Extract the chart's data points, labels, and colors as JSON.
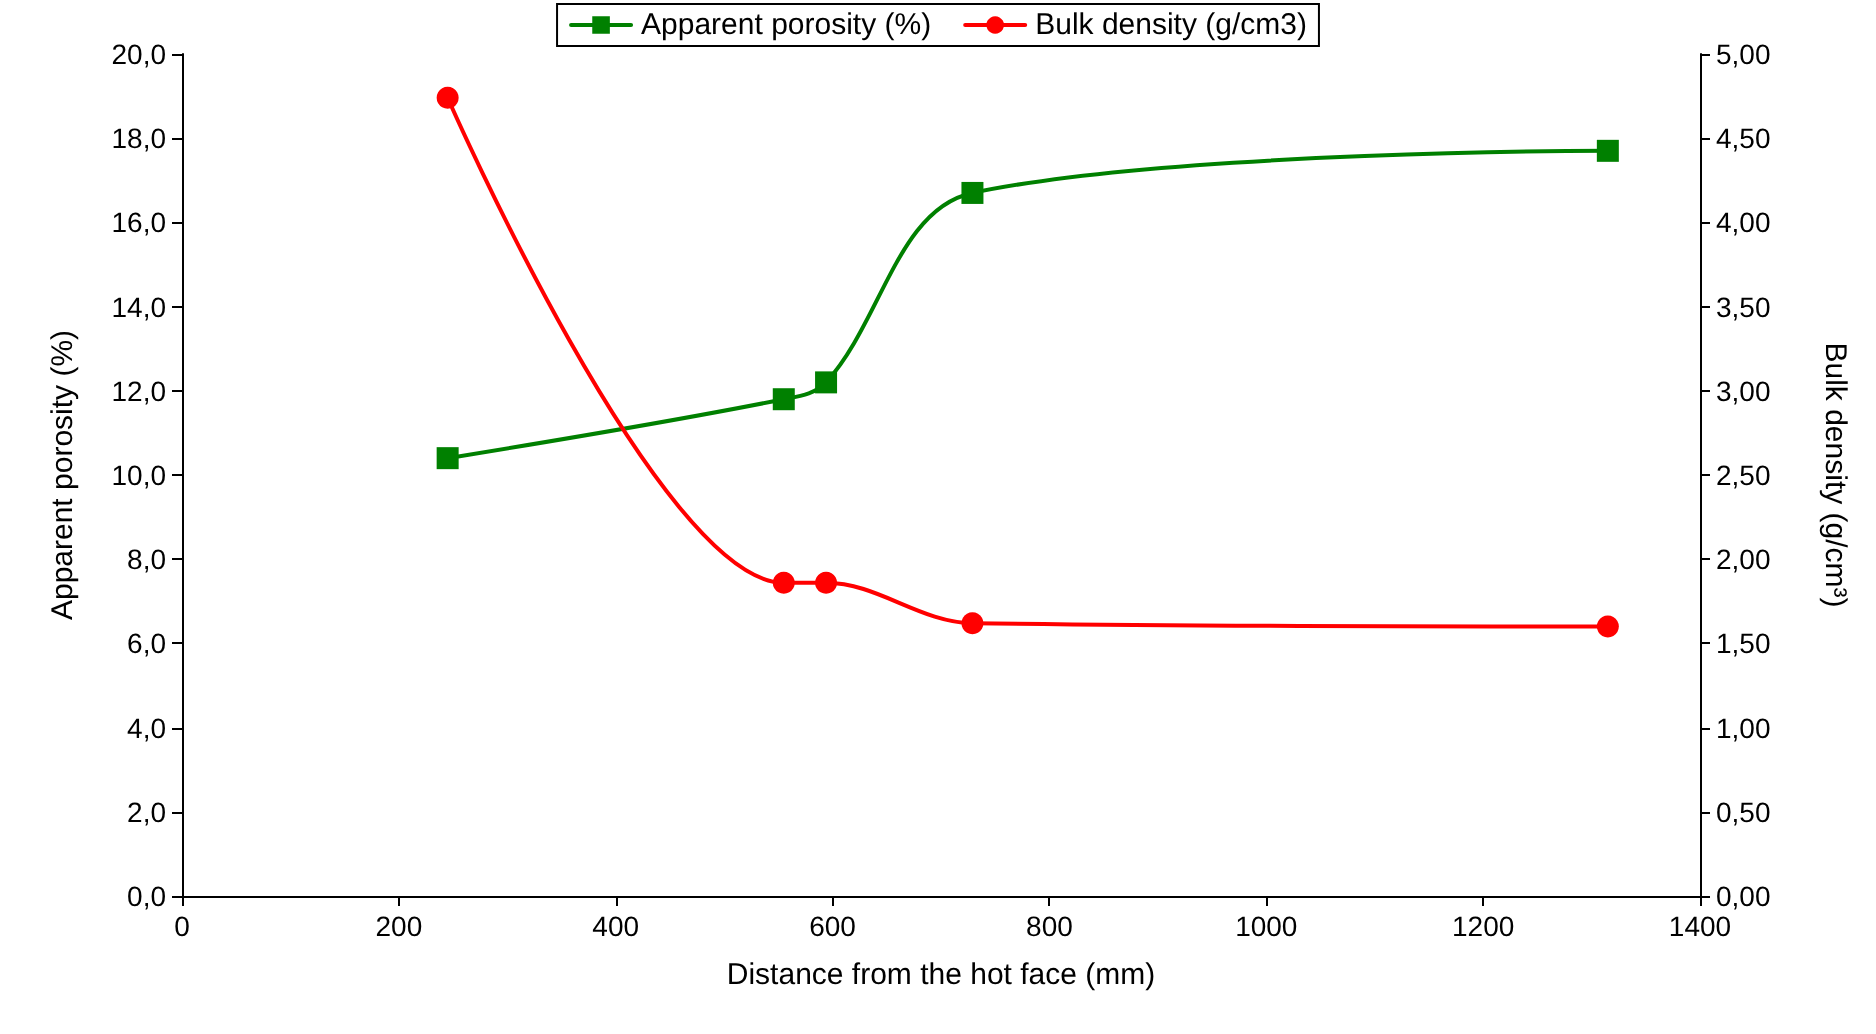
{
  "chart_data": {
    "type": "line",
    "xlabel": "Distance from the hot face (mm)",
    "ylabel": "Apparent porosity (%)",
    "y2label": "Bulk density (g/cm³)",
    "xlim": [
      0,
      1400
    ],
    "xticks": [
      0,
      200,
      400,
      600,
      800,
      1000,
      1200,
      1400
    ],
    "ylim": [
      0,
      20
    ],
    "yticks": [
      {
        "value": 0,
        "label": "0,0"
      },
      {
        "value": 2,
        "label": "2,0"
      },
      {
        "value": 4,
        "label": "4,0"
      },
      {
        "value": 6,
        "label": "6,0"
      },
      {
        "value": 8,
        "label": "8,0"
      },
      {
        "value": 10,
        "label": "10,0"
      },
      {
        "value": 12,
        "label": "12,0"
      },
      {
        "value": 14,
        "label": "14,0"
      },
      {
        "value": 16,
        "label": "16,0"
      },
      {
        "value": 18,
        "label": "18,0"
      },
      {
        "value": 20,
        "label": "20,0"
      }
    ],
    "y2lim": [
      0,
      5
    ],
    "y2ticks": [
      {
        "value": 0,
        "label": "0,00"
      },
      {
        "value": 0.5,
        "label": "0,50"
      },
      {
        "value": 1,
        "label": "1,00"
      },
      {
        "value": 1.5,
        "label": "1,50"
      },
      {
        "value": 2,
        "label": "2,00"
      },
      {
        "value": 2.5,
        "label": "2,50"
      },
      {
        "value": 3,
        "label": "3,00"
      },
      {
        "value": 3.5,
        "label": "3,50"
      },
      {
        "value": 4,
        "label": "4,00"
      },
      {
        "value": 4.5,
        "label": "4,50"
      },
      {
        "value": 5,
        "label": "5,00"
      }
    ],
    "grid": false,
    "legend": "top",
    "line_style": "solid",
    "series": [
      {
        "name": "Apparent porosity (%)",
        "color": "#008000",
        "marker": "square",
        "x": [
          245,
          555,
          594,
          729,
          1315
        ],
        "values": [
          10.4,
          11.8,
          12.2,
          16.7,
          17.7
        ]
      },
      {
        "name": "Bulk density (g/cm3)",
        "color": "#ff0000",
        "marker": "circle",
        "axis": "y2",
        "x": [
          245,
          555,
          594,
          729,
          1315
        ],
        "values": [
          4.74,
          1.86,
          1.86,
          1.62,
          1.6
        ]
      }
    ]
  }
}
